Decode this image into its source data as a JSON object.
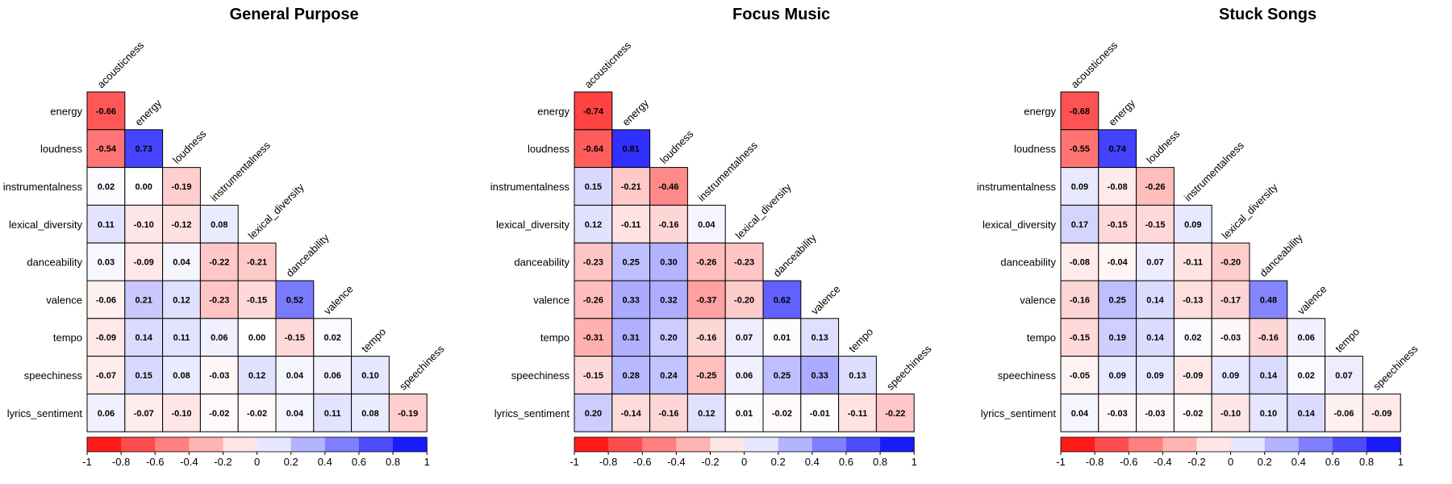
{
  "chart_data": [
    {
      "type": "heatmap",
      "title": "General Purpose",
      "variables": [
        "acousticness",
        "energy",
        "loudness",
        "instrumentalness",
        "lexical_diversity",
        "danceability",
        "valence",
        "tempo",
        "speechiness",
        "lyrics_sentiment"
      ],
      "matrix": [
        [
          -0.66
        ],
        [
          -0.54,
          0.73
        ],
        [
          0.02,
          0.0,
          -0.19
        ],
        [
          0.11,
          -0.1,
          -0.12,
          0.08
        ],
        [
          0.03,
          -0.09,
          0.04,
          -0.22,
          -0.21
        ],
        [
          -0.06,
          0.21,
          0.12,
          -0.23,
          -0.15,
          0.52
        ],
        [
          -0.09,
          0.14,
          0.11,
          0.06,
          0.0,
          -0.15,
          0.02
        ],
        [
          -0.07,
          0.15,
          0.08,
          -0.03,
          0.12,
          0.04,
          0.06,
          0.1
        ],
        [
          0.06,
          -0.07,
          -0.1,
          -0.02,
          -0.02,
          0.04,
          0.11,
          0.08,
          -0.19
        ]
      ]
    },
    {
      "type": "heatmap",
      "title": "Focus Music",
      "variables": [
        "acousticness",
        "energy",
        "loudness",
        "instrumentalness",
        "lexical_diversity",
        "danceability",
        "valence",
        "tempo",
        "speechiness",
        "lyrics_sentiment"
      ],
      "matrix": [
        [
          -0.74
        ],
        [
          -0.64,
          0.81
        ],
        [
          0.15,
          -0.21,
          -0.46
        ],
        [
          0.12,
          -0.11,
          -0.16,
          0.04
        ],
        [
          -0.23,
          0.25,
          0.3,
          -0.26,
          -0.23
        ],
        [
          -0.26,
          0.33,
          0.32,
          -0.37,
          -0.2,
          0.62
        ],
        [
          -0.31,
          0.31,
          0.2,
          -0.16,
          0.07,
          0.01,
          0.13
        ],
        [
          -0.15,
          0.28,
          0.24,
          -0.25,
          0.06,
          0.25,
          0.33,
          0.13
        ],
        [
          0.2,
          -0.14,
          -0.16,
          0.12,
          0.01,
          -0.02,
          -0.01,
          -0.11,
          -0.22
        ]
      ]
    },
    {
      "type": "heatmap",
      "title": "Stuck Songs",
      "variables": [
        "acousticness",
        "energy",
        "loudness",
        "instrumentalness",
        "lexical_diversity",
        "danceability",
        "valence",
        "tempo",
        "speechiness",
        "lyrics_sentiment"
      ],
      "matrix": [
        [
          -0.68
        ],
        [
          -0.55,
          0.74
        ],
        [
          0.09,
          -0.08,
          -0.26
        ],
        [
          0.17,
          -0.15,
          -0.15,
          0.09
        ],
        [
          -0.08,
          -0.04,
          0.07,
          -0.11,
          -0.2
        ],
        [
          -0.16,
          0.25,
          0.14,
          -0.13,
          -0.17,
          0.48
        ],
        [
          -0.15,
          0.19,
          0.14,
          0.02,
          -0.03,
          -0.16,
          0.06
        ],
        [
          -0.05,
          0.09,
          0.09,
          -0.09,
          0.09,
          0.14,
          0.02,
          0.07
        ],
        [
          0.04,
          -0.03,
          -0.03,
          -0.02,
          -0.1,
          0.1,
          0.14,
          -0.06,
          -0.09
        ]
      ]
    }
  ],
  "legend": {
    "ticks": [
      "-1",
      "-0.8",
      "-0.6",
      "-0.4",
      "-0.2",
      "0",
      "0.2",
      "0.4",
      "0.6",
      "0.8",
      "1"
    ],
    "colors": [
      "#FF0000",
      "#FF3333",
      "#FF6666",
      "#FF9999",
      "#FFCCCC",
      "#FFFFFF",
      "#CCCCFF",
      "#9999FF",
      "#6666FF",
      "#3333FF",
      "#0000FF"
    ],
    "bins": 10
  }
}
